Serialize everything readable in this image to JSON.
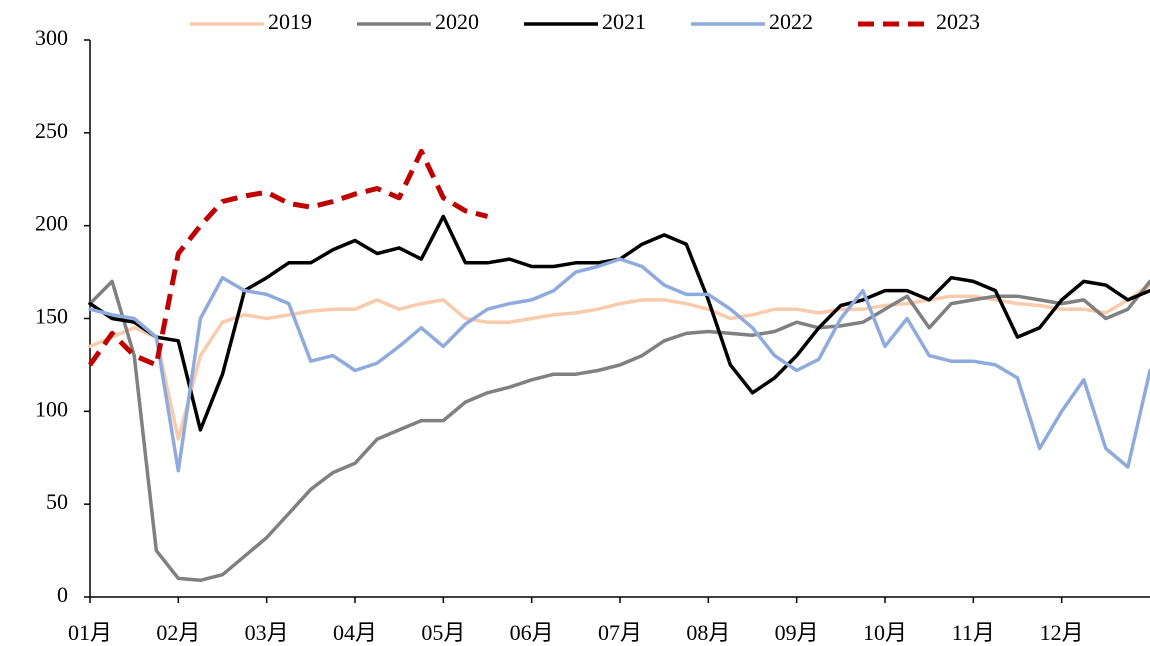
{
  "chart_data": {
    "type": "line",
    "x": [
      0,
      0.25,
      0.5,
      0.75,
      1,
      1.25,
      1.5,
      1.75,
      2,
      2.25,
      2.5,
      2.75,
      3,
      3.25,
      3.5,
      3.75,
      4,
      4.25,
      4.5,
      4.75,
      5,
      5.25,
      5.5,
      5.75,
      6,
      6.25,
      6.5,
      6.75,
      7,
      7.25,
      7.5,
      7.75,
      8,
      8.25,
      8.5,
      8.75,
      9,
      9.25,
      9.5,
      9.75,
      10,
      10.25,
      10.5,
      10.75,
      11,
      11.25,
      11.5,
      11.75,
      12
    ],
    "xlim": [
      0,
      12
    ],
    "xticks": [
      {
        "value": 0,
        "label": "01月"
      },
      {
        "value": 1,
        "label": "02月"
      },
      {
        "value": 2,
        "label": "03月"
      },
      {
        "value": 3,
        "label": "04月"
      },
      {
        "value": 4,
        "label": "05月"
      },
      {
        "value": 5,
        "label": "06月"
      },
      {
        "value": 6,
        "label": "07月"
      },
      {
        "value": 7,
        "label": "08月"
      },
      {
        "value": 8,
        "label": "09月"
      },
      {
        "value": 9,
        "label": "10月"
      },
      {
        "value": 10,
        "label": "11月"
      },
      {
        "value": 11,
        "label": "12月"
      }
    ],
    "ylim": [
      0,
      300
    ],
    "yticks": [
      0,
      50,
      100,
      150,
      200,
      250,
      300
    ],
    "legend": "top",
    "series": [
      {
        "name": "2019",
        "color": "#f8cbad",
        "style": "solid",
        "values": [
          135,
          140,
          145,
          140,
          85,
          130,
          148,
          152,
          150,
          152,
          154,
          155,
          155,
          160,
          155,
          158,
          160,
          150,
          148,
          148,
          150,
          152,
          153,
          155,
          158,
          160,
          160,
          158,
          155,
          150,
          152,
          155,
          155,
          153,
          155,
          155,
          157,
          158,
          160,
          162,
          162,
          160,
          158,
          157,
          155,
          155,
          153,
          160,
          168
        ]
      },
      {
        "name": "2020",
        "color": "#808080",
        "style": "solid",
        "values": [
          158,
          170,
          130,
          25,
          10,
          9,
          12,
          22,
          32,
          45,
          58,
          67,
          72,
          85,
          90,
          95,
          95,
          105,
          110,
          113,
          117,
          120,
          120,
          122,
          125,
          130,
          138,
          142,
          143,
          142,
          141,
          143,
          148,
          145,
          146,
          148,
          155,
          162,
          145,
          158,
          160,
          162,
          162,
          160,
          158,
          160,
          150,
          155,
          170
        ]
      },
      {
        "name": "2021",
        "color": "#000000",
        "style": "solid",
        "values": [
          158,
          150,
          148,
          140,
          138,
          90,
          120,
          165,
          172,
          180,
          180,
          187,
          192,
          185,
          188,
          182,
          205,
          180,
          180,
          182,
          178,
          178,
          180,
          180,
          182,
          190,
          195,
          190,
          160,
          125,
          110,
          118,
          130,
          145,
          157,
          160,
          165,
          165,
          160,
          172,
          170,
          165,
          140,
          145,
          160,
          170,
          168,
          160,
          165
        ]
      },
      {
        "name": "2022",
        "color": "#8faadc",
        "style": "solid",
        "values": [
          155,
          152,
          150,
          140,
          68,
          150,
          172,
          165,
          163,
          158,
          127,
          130,
          122,
          126,
          135,
          145,
          135,
          147,
          155,
          158,
          160,
          165,
          175,
          178,
          182,
          178,
          168,
          163,
          163,
          155,
          145,
          130,
          122,
          128,
          150,
          165,
          135,
          150,
          130,
          127,
          127,
          125,
          118,
          80,
          100,
          117,
          80,
          70,
          122
        ]
      },
      {
        "name": "2023",
        "color": "#c00000",
        "style": "dashed",
        "values": [
          125,
          142,
          130,
          125,
          185,
          200,
          213,
          216,
          218,
          212,
          210,
          213,
          217,
          220,
          215,
          240,
          215,
          208,
          205,
          null,
          null,
          null,
          null,
          null,
          null,
          null,
          null,
          null,
          null,
          null,
          null,
          null,
          null,
          null,
          null,
          null,
          null,
          null,
          null,
          null,
          null,
          null,
          null,
          null,
          null,
          null,
          null,
          null,
          null
        ]
      }
    ]
  }
}
